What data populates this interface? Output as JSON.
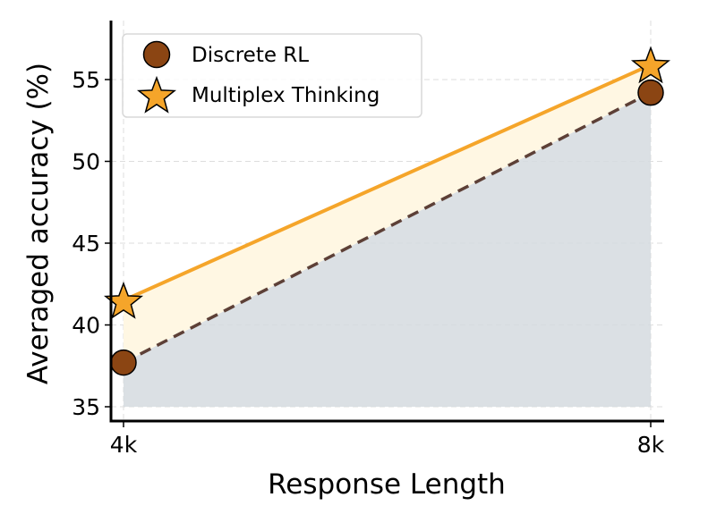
{
  "chart_data": {
    "type": "line",
    "title": "",
    "xlabel": "Response Length",
    "ylabel": "Averaged accuracy (%)",
    "categories": [
      "4k",
      "8k"
    ],
    "x": [
      "4k",
      "8k"
    ],
    "yticks": [
      35,
      40,
      45,
      50,
      55
    ],
    "ylim": [
      34.4,
      58.2
    ],
    "grid": true,
    "legend_position": "upper left",
    "series": [
      {
        "name": "Discrete RL",
        "values": [
          37.7,
          54.2
        ],
        "marker": "circle",
        "line_style": "dashed",
        "color": "#8B4513",
        "line_color": "#5D4037",
        "fill_color": "#D5DADF"
      },
      {
        "name": "Multiplex Thinking",
        "values": [
          41.5,
          55.9
        ],
        "marker": "star",
        "line_style": "solid",
        "color": "#F5A52A",
        "line_color": "#F5A52A",
        "fill_color": "#FFF7E3"
      }
    ]
  },
  "legend": {
    "items": [
      {
        "label": "Discrete RL"
      },
      {
        "label": "Multiplex Thinking"
      }
    ]
  },
  "axes": {
    "x_title": "Response Length",
    "y_title": "Averaged accuracy (%)",
    "x_ticks": [
      "4k",
      "8k"
    ],
    "y_ticks": [
      "35",
      "40",
      "45",
      "50",
      "55"
    ]
  }
}
